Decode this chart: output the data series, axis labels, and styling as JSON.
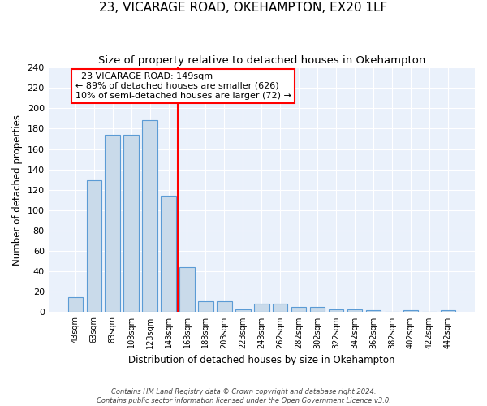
{
  "title": "23, VICARAGE ROAD, OKEHAMPTON, EX20 1LF",
  "subtitle": "Size of property relative to detached houses in Okehampton",
  "xlabel": "Distribution of detached houses by size in Okehampton",
  "ylabel": "Number of detached properties",
  "categories": [
    "43sqm",
    "63sqm",
    "83sqm",
    "103sqm",
    "123sqm",
    "143sqm",
    "163sqm",
    "183sqm",
    "203sqm",
    "223sqm",
    "243sqm",
    "262sqm",
    "282sqm",
    "302sqm",
    "322sqm",
    "342sqm",
    "362sqm",
    "382sqm",
    "402sqm",
    "422sqm",
    "442sqm"
  ],
  "values": [
    15,
    129,
    174,
    174,
    188,
    114,
    44,
    11,
    11,
    3,
    8,
    8,
    5,
    5,
    3,
    3,
    2,
    0,
    2,
    0,
    2
  ],
  "bar_color": "#c9daea",
  "bar_edge_color": "#5b9bd5",
  "bar_width": 0.8,
  "vline_x": 5.5,
  "vline_color": "red",
  "annotation_text": "  23 VICARAGE ROAD: 149sqm\n← 89% of detached houses are smaller (626)\n10% of semi-detached houses are larger (72) →",
  "annotation_box_color": "white",
  "annotation_box_edge": "red",
  "ylim": [
    0,
    240
  ],
  "yticks": [
    0,
    20,
    40,
    60,
    80,
    100,
    120,
    140,
    160,
    180,
    200,
    220,
    240
  ],
  "background_color": "#eaf1fb",
  "grid_color": "white",
  "title_fontsize": 11,
  "subtitle_fontsize": 9.5,
  "footer_text": "Contains HM Land Registry data © Crown copyright and database right 2024.\nContains public sector information licensed under the Open Government Licence v3.0."
}
